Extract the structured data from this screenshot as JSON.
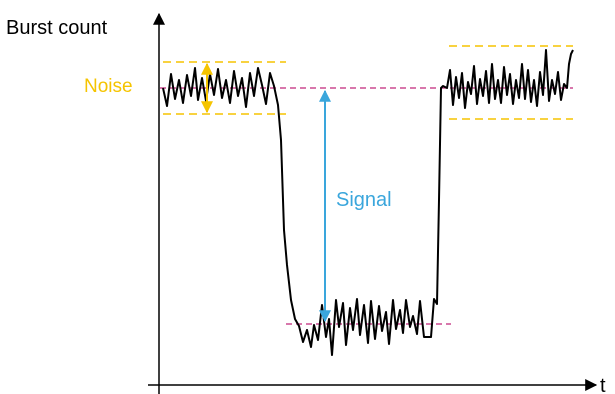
{
  "labels": {
    "y_axis": "Burst count",
    "x_axis": "t",
    "noise": "Noise",
    "signal": "Signal"
  },
  "colors": {
    "axis": "#000000",
    "trace": "#000000",
    "noise": "#f5c400",
    "signal": "#3aa6dc",
    "reference": "#c0267a"
  }
}
